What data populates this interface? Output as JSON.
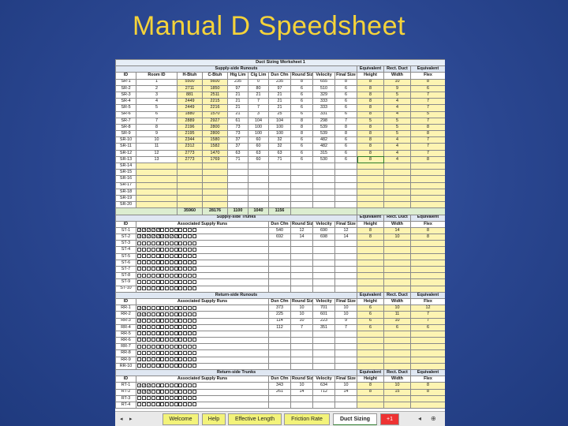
{
  "slide_title": "Manual D Speedsheet",
  "sheet": {
    "worksheet_title": "Duct Sizing Worksheet 1",
    "supply_runouts": {
      "section_label": "Supply-side Runouts",
      "equiv_header": [
        "Equivalent",
        "Rect. Duct",
        "Equivalent"
      ],
      "headers": [
        "ID",
        "Room ID",
        "H-Btuh",
        "C-Btuh",
        "Htg Lim",
        "Clg Lim",
        "Dsn Cfm",
        "Round Size",
        "Velocity",
        "Final Size",
        "Height",
        "Width",
        "Flex"
      ],
      "rows": [
        [
          "SR-1",
          "1",
          "5500",
          "5600",
          "235",
          "0",
          "235",
          "8",
          "655",
          "8",
          "8",
          "10",
          "8"
        ],
        [
          "SR-2",
          "2",
          "2711",
          "1850",
          "97",
          "80",
          "97",
          "6",
          "510",
          "6",
          "8",
          "9",
          "6"
        ],
        [
          "SR-3",
          "3",
          "881",
          "2511",
          "21",
          "21",
          "21",
          "6",
          "329",
          "6",
          "8",
          "5",
          "7"
        ],
        [
          "SR-4",
          "4",
          "2449",
          "2215",
          "21",
          "7",
          "21",
          "6",
          "333",
          "6",
          "8",
          "4",
          "7"
        ],
        [
          "SR-5",
          "5",
          "2449",
          "2216",
          "21",
          "7",
          "21",
          "6",
          "333",
          "6",
          "8",
          "4",
          "7"
        ],
        [
          "SR-6",
          "6",
          "1880",
          "1570",
          "21",
          "3",
          "25",
          "6",
          "331",
          "6",
          "8",
          "4",
          "5"
        ],
        [
          "SR-7",
          "7",
          "2889",
          "2927",
          "61",
          "104",
          "104",
          "8",
          "298",
          "7",
          "5",
          "5",
          "7"
        ],
        [
          "SR-8",
          "8",
          "2196",
          "2800",
          "73",
          "100",
          "100",
          "8",
          "539",
          "8",
          "8",
          "5",
          "8"
        ],
        [
          "SR-9",
          "9",
          "2195",
          "2800",
          "73",
          "100",
          "100",
          "8",
          "539",
          "8",
          "8",
          "5",
          "8"
        ],
        [
          "SR-10",
          "10",
          "2344",
          "1580",
          "37",
          "60",
          "32",
          "6",
          "482",
          "6",
          "8",
          "4",
          "7"
        ],
        [
          "SR-11",
          "11",
          "2312",
          "1582",
          "37",
          "60",
          "32",
          "6",
          "482",
          "6",
          "8",
          "4",
          "7"
        ],
        [
          "SR-12",
          "12",
          "2773",
          "1470",
          "63",
          "63",
          "63",
          "6",
          "315",
          "6",
          "8",
          "4",
          "7"
        ],
        [
          "SR-13",
          "13",
          "2773",
          "1769",
          "71",
          "60",
          "71",
          "6",
          "530",
          "6",
          "8",
          "4",
          "8"
        ],
        [
          "SR-14"
        ],
        [
          "SR-15"
        ],
        [
          "SR-16"
        ],
        [
          "SR-17"
        ],
        [
          "SR-18"
        ],
        [
          "SR-19"
        ],
        [
          "SR-20"
        ]
      ],
      "totals": [
        "35960",
        "28176",
        "1100",
        "1040",
        "1156"
      ]
    },
    "supply_trunks": {
      "section_label": "Supply-side Trunks",
      "equiv_header": [
        "Equivalent",
        "Rect. Duct",
        "Equivalent"
      ],
      "assoc_label": "Associated Supply Runs",
      "headers": [
        "ID",
        "Dsn Cfm",
        "Round Size",
        "Velocity",
        "Final Size",
        "Height",
        "Width",
        "Flex"
      ],
      "rows": [
        {
          "id": "ST-1",
          "checks": 5,
          "vals": [
            "540",
            "12",
            "690",
            "12",
            "8",
            "14",
            "8"
          ]
        },
        {
          "id": "ST-2",
          "checks": 9,
          "vals": [
            "692",
            "14",
            "698",
            "14",
            "8",
            "10",
            "8"
          ]
        },
        {
          "id": "ST-3",
          "checks": 0
        },
        {
          "id": "ST-4",
          "checks": 0
        },
        {
          "id": "ST-5",
          "checks": 0
        },
        {
          "id": "ST-6",
          "checks": 0
        },
        {
          "id": "ST-7",
          "checks": 0
        },
        {
          "id": "ST-8",
          "checks": 0
        },
        {
          "id": "ST-9",
          "checks": 0
        },
        {
          "id": "ST-10",
          "checks": 0
        }
      ]
    },
    "return_runouts": {
      "section_label": "Return-side Runouts",
      "equiv_header": [
        "Equivalent",
        "Rect. Duct",
        "Equivalent"
      ],
      "assoc_label": "Associated Supply Runs",
      "headers": [
        "ID",
        "Dsn Cfm",
        "Round Size",
        "Velocity",
        "Final Size",
        "Height",
        "Width",
        "Flex"
      ],
      "rows": [
        {
          "id": "RR-1",
          "checks": 2,
          "vals": [
            "373",
            "10",
            "701",
            "10",
            "6",
            "10",
            "12"
          ]
        },
        {
          "id": "RR-2",
          "checks": 2,
          "vals": [
            "225",
            "10",
            "601",
            "10",
            "6",
            "11",
            "7"
          ]
        },
        {
          "id": "RR-3",
          "checks": 1,
          "vals": [
            "114",
            "10",
            "223",
            "9",
            "6",
            "10",
            "7"
          ]
        },
        {
          "id": "RR-4",
          "checks": 1,
          "vals": [
            "112",
            "7",
            "351",
            "7",
            "6",
            "6",
            "6"
          ]
        },
        {
          "id": "RR-5",
          "checks": 0
        },
        {
          "id": "RR-6",
          "checks": 0
        },
        {
          "id": "RR-7",
          "checks": 0
        },
        {
          "id": "RR-8",
          "checks": 0
        },
        {
          "id": "RR-9",
          "checks": 0
        },
        {
          "id": "RR-10",
          "checks": 0
        }
      ]
    },
    "return_trunks": {
      "section_label": "Return-side Trunks",
      "equiv_header": [
        "Equivalent",
        "Rect. Duct",
        "Equivalent"
      ],
      "assoc_label": "Associated Supply Runs",
      "headers": [
        "ID",
        "Dsn Cfm",
        "Round Size",
        "Velocity",
        "Final Size",
        "Height",
        "Width",
        "Flex"
      ],
      "rows": [
        {
          "id": "RT-1",
          "checks": 3,
          "vals": [
            "343",
            "10",
            "634",
            "10",
            "8",
            "10",
            "8"
          ]
        },
        {
          "id": "RT-2",
          "checks": 3,
          "vals": [
            "261",
            "14",
            "712",
            "14",
            "8",
            "15",
            "8"
          ]
        },
        {
          "id": "RT-3",
          "checks": 0
        },
        {
          "id": "RT-4",
          "checks": 0
        }
      ]
    },
    "tabs": [
      "Welcome",
      "Help",
      "Effective Length",
      "Friction Rate",
      "Duct Sizing",
      "+1"
    ],
    "active_tab": "Duct Sizing"
  }
}
